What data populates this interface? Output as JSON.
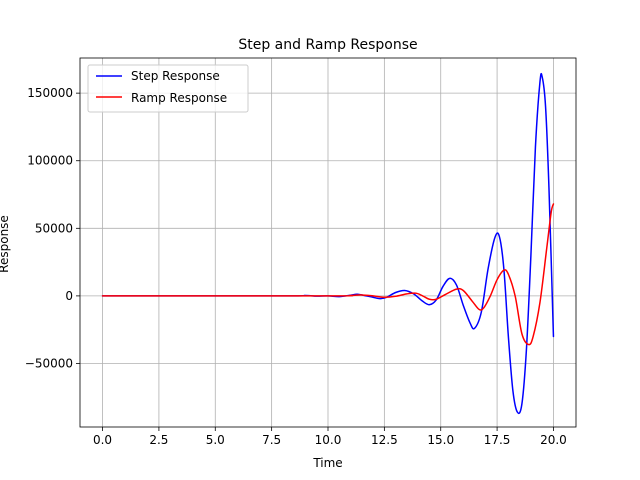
{
  "chart_data": {
    "type": "line",
    "title": "Step and Ramp Response",
    "xlabel": "Time",
    "ylabel": "Response",
    "xlim": [
      -1.0,
      21.0
    ],
    "ylim": [
      -97000,
      176000
    ],
    "xticks": [
      0.0,
      2.5,
      5.0,
      7.5,
      10.0,
      12.5,
      15.0,
      17.5,
      20.0
    ],
    "xtick_labels": [
      "0.0",
      "2.5",
      "5.0",
      "7.5",
      "10.0",
      "12.5",
      "15.0",
      "17.5",
      "20.0"
    ],
    "yticks": [
      -50000,
      0,
      50000,
      100000,
      150000
    ],
    "ytick_labels": [
      "−50000",
      "0",
      "50000",
      "100000",
      "150000"
    ],
    "grid": true,
    "legend_position": "upper-left",
    "series": [
      {
        "name": "Step Response",
        "color": "#0000ff",
        "points": [
          [
            0.0,
            0
          ],
          [
            8.0,
            0
          ],
          [
            9.0,
            300
          ],
          [
            9.5,
            -200
          ],
          [
            10.0,
            0
          ],
          [
            10.5,
            -500
          ],
          [
            11.0,
            500
          ],
          [
            11.3,
            1200
          ],
          [
            11.7,
            0
          ],
          [
            12.0,
            -1000
          ],
          [
            12.3,
            -2000
          ],
          [
            12.6,
            -1000
          ],
          [
            13.0,
            2500
          ],
          [
            13.4,
            4000
          ],
          [
            13.8,
            1500
          ],
          [
            14.2,
            -4000
          ],
          [
            14.5,
            -6500
          ],
          [
            14.8,
            -3000
          ],
          [
            15.1,
            7000
          ],
          [
            15.4,
            13000
          ],
          [
            15.7,
            8000
          ],
          [
            16.0,
            -7000
          ],
          [
            16.3,
            -20000
          ],
          [
            16.5,
            -24000
          ],
          [
            16.8,
            -12000
          ],
          [
            17.1,
            20000
          ],
          [
            17.4,
            43000
          ],
          [
            17.6,
            44000
          ],
          [
            17.8,
            20000
          ],
          [
            18.0,
            -30000
          ],
          [
            18.2,
            -70000
          ],
          [
            18.4,
            -86000
          ],
          [
            18.6,
            -80000
          ],
          [
            18.8,
            -40000
          ],
          [
            19.0,
            30000
          ],
          [
            19.2,
            110000
          ],
          [
            19.4,
            158000
          ],
          [
            19.5,
            162000
          ],
          [
            19.65,
            140000
          ],
          [
            19.8,
            80000
          ],
          [
            20.0,
            -30000
          ]
        ]
      },
      {
        "name": "Ramp Response",
        "color": "#ff0000",
        "points": [
          [
            0.0,
            0
          ],
          [
            10.0,
            0
          ],
          [
            11.0,
            300
          ],
          [
            11.5,
            700
          ],
          [
            12.0,
            0
          ],
          [
            12.5,
            -1000
          ],
          [
            13.0,
            -300
          ],
          [
            13.5,
            1500
          ],
          [
            13.9,
            2000
          ],
          [
            14.2,
            0
          ],
          [
            14.5,
            -2500
          ],
          [
            14.8,
            -2500
          ],
          [
            15.2,
            1000
          ],
          [
            15.7,
            5000
          ],
          [
            16.0,
            4000
          ],
          [
            16.4,
            -4000
          ],
          [
            16.7,
            -10000
          ],
          [
            16.9,
            -9000
          ],
          [
            17.2,
            0
          ],
          [
            17.5,
            12000
          ],
          [
            17.8,
            19000
          ],
          [
            18.0,
            16000
          ],
          [
            18.3,
            0
          ],
          [
            18.6,
            -28000
          ],
          [
            18.9,
            -36000
          ],
          [
            19.1,
            -30000
          ],
          [
            19.4,
            -5000
          ],
          [
            19.7,
            35000
          ],
          [
            19.9,
            62000
          ],
          [
            20.0,
            68000
          ]
        ]
      }
    ]
  }
}
